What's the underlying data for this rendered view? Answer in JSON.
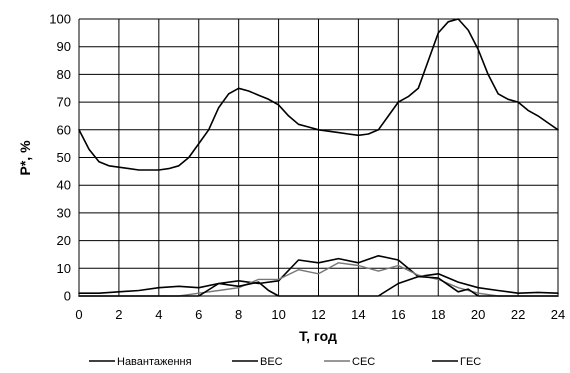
{
  "chart_data": {
    "type": "line",
    "title": "",
    "xlabel": "T, год",
    "ylabel": "P*, %",
    "xlim": [
      0,
      24
    ],
    "ylim": [
      0,
      100
    ],
    "x_ticks": [
      0,
      2,
      4,
      6,
      8,
      10,
      12,
      14,
      16,
      18,
      20,
      22,
      24
    ],
    "y_ticks": [
      0,
      10,
      20,
      30,
      40,
      50,
      60,
      70,
      80,
      90,
      100
    ],
    "grid": true,
    "legend_position": "bottom",
    "series": [
      {
        "name": "Навантаження",
        "color": "#000000",
        "stroke_width": 1.6,
        "x": [
          0,
          0.5,
          1,
          1.5,
          2,
          2.5,
          3,
          3.5,
          4,
          4.5,
          5,
          5.5,
          6,
          6.5,
          7,
          7.5,
          8,
          8.5,
          9,
          9.5,
          10,
          10.5,
          11,
          11.5,
          12,
          12.5,
          13,
          13.5,
          14,
          14.5,
          15,
          15.5,
          16,
          16.5,
          17,
          17.5,
          18,
          18.5,
          19,
          19.5,
          20,
          20.5,
          21,
          21.5,
          22,
          22.5,
          23,
          23.5,
          24
        ],
        "values": [
          60,
          53,
          48.5,
          47,
          46.5,
          46,
          45.5,
          45.5,
          45.5,
          46,
          47,
          50,
          55,
          60,
          68,
          73,
          75,
          74,
          72.5,
          71,
          69,
          65,
          62,
          61,
          60,
          59.5,
          59,
          58.5,
          58,
          58.5,
          60,
          65,
          70,
          72,
          75,
          85,
          95,
          99,
          100,
          96,
          89,
          80,
          73,
          71,
          70,
          67,
          65,
          62.5,
          60
        ]
      },
      {
        "name": "ВЕС",
        "color": "#000000",
        "stroke_width": 1.6,
        "x": [
          0,
          1,
          2,
          3,
          4,
          5,
          6,
          7,
          8,
          9,
          10,
          11,
          12,
          13,
          14,
          15,
          16,
          17,
          18,
          19,
          20,
          21,
          22,
          23,
          24
        ],
        "values": [
          1,
          1,
          1.5,
          2,
          3,
          3.5,
          3,
          4.5,
          5.5,
          4.5,
          5.5,
          13,
          12,
          13.5,
          12,
          14.5,
          13,
          7,
          8,
          5,
          3,
          2,
          1,
          1.3,
          1
        ]
      },
      {
        "name": "СЕС",
        "color": "#777777",
        "stroke_width": 1.4,
        "x": [
          0,
          1,
          2,
          3,
          4,
          5,
          6,
          7,
          8,
          9,
          10,
          11,
          12,
          13,
          14,
          15,
          16,
          17,
          18,
          19,
          20,
          21,
          22,
          23,
          24
        ],
        "values": [
          0,
          0,
          0,
          0,
          0,
          0,
          1,
          2,
          3,
          6,
          6,
          9.5,
          8,
          12,
          11,
          9,
          11,
          7.5,
          6,
          3,
          1,
          0,
          0,
          0,
          0
        ]
      },
      {
        "name": "ГЕС",
        "color": "#000000",
        "stroke_width": 1.6,
        "x": [
          0,
          1,
          2,
          3,
          4,
          5,
          6,
          7,
          8,
          9,
          9.5,
          10,
          11,
          12,
          13,
          14,
          15,
          16,
          17,
          18,
          19,
          19.5,
          20,
          21,
          22,
          23,
          24
        ],
        "values": [
          0,
          0,
          0,
          0,
          0,
          0,
          0,
          4.5,
          3.5,
          5,
          2,
          0,
          0,
          0,
          0,
          0,
          0,
          4.5,
          7,
          6.5,
          1.5,
          2.5,
          0,
          0,
          0,
          0,
          0
        ]
      }
    ]
  }
}
